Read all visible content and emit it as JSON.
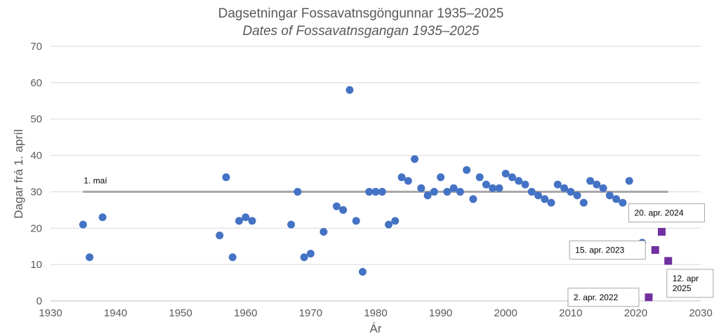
{
  "chart_data": {
    "type": "scatter",
    "title": "Dagsetningar Fossavatnsgöngunnar 1935–2025",
    "subtitle": "Dates of Fossavatnsgangan 1935–2025",
    "xlabel": "Ár",
    "ylabel": "Dagar frá 1. apríl",
    "xlim": [
      1930,
      2030
    ],
    "ylim": [
      0,
      70
    ],
    "x_ticks": [
      1930,
      1940,
      1950,
      1960,
      1970,
      1980,
      1990,
      2000,
      2010,
      2020,
      2030
    ],
    "y_ticks": [
      0,
      10,
      20,
      30,
      40,
      50,
      60,
      70
    ],
    "grid": "horizontal",
    "legend": "none",
    "colors": {
      "series": "#4472C4",
      "recent": "#7030A0",
      "reference_line": "#A6A6A6",
      "grid": "#D9D9D9",
      "text": "#595959"
    },
    "series": [
      {
        "marker": "circle",
        "points": [
          [
            1935,
            21
          ],
          [
            1936,
            12
          ],
          [
            1938,
            23
          ],
          [
            1956,
            18
          ],
          [
            1957,
            34
          ],
          [
            1958,
            12
          ],
          [
            1959,
            22
          ],
          [
            1960,
            23
          ],
          [
            1961,
            22
          ],
          [
            1967,
            21
          ],
          [
            1968,
            30
          ],
          [
            1969,
            12
          ],
          [
            1970,
            13
          ],
          [
            1972,
            19
          ],
          [
            1974,
            26
          ],
          [
            1975,
            25
          ],
          [
            1976,
            58
          ],
          [
            1977,
            22
          ],
          [
            1978,
            8
          ],
          [
            1979,
            30
          ],
          [
            1980,
            30
          ],
          [
            1981,
            30
          ],
          [
            1982,
            21
          ],
          [
            1983,
            22
          ],
          [
            1984,
            34
          ],
          [
            1985,
            33
          ],
          [
            1986,
            39
          ],
          [
            1987,
            31
          ],
          [
            1988,
            29
          ],
          [
            1989,
            30
          ],
          [
            1990,
            34
          ],
          [
            1991,
            30
          ],
          [
            1992,
            31
          ],
          [
            1993,
            30
          ],
          [
            1994,
            36
          ],
          [
            1995,
            28
          ],
          [
            1996,
            34
          ],
          [
            1997,
            32
          ],
          [
            1998,
            31
          ],
          [
            1999,
            31
          ],
          [
            2000,
            35
          ],
          [
            2001,
            34
          ],
          [
            2002,
            33
          ],
          [
            2003,
            32
          ],
          [
            2004,
            30
          ],
          [
            2005,
            29
          ],
          [
            2006,
            28
          ],
          [
            2007,
            27
          ],
          [
            2008,
            32
          ],
          [
            2009,
            31
          ],
          [
            2010,
            30
          ],
          [
            2011,
            29
          ],
          [
            2012,
            27
          ],
          [
            2013,
            33
          ],
          [
            2014,
            32
          ],
          [
            2015,
            31
          ],
          [
            2016,
            29
          ],
          [
            2017,
            28
          ],
          [
            2018,
            27
          ],
          [
            2019,
            33
          ],
          [
            2021,
            16
          ]
        ]
      },
      {
        "marker": "square",
        "points": [
          [
            2022,
            1
          ],
          [
            2023,
            14
          ],
          [
            2024,
            19
          ],
          [
            2025,
            11
          ]
        ]
      }
    ],
    "reference_line": {
      "y": 30,
      "x_from": 1935,
      "x_to": 2025,
      "label": "1. maí"
    },
    "annotations": [
      {
        "lines": [
          "2. apr. 2022"
        ],
        "x": 2022,
        "y": 1,
        "anchor": "left"
      },
      {
        "lines": [
          "15. apr. 2023"
        ],
        "x": 2023,
        "y": 14,
        "anchor": "left"
      },
      {
        "lines": [
          "20. apr. 2024"
        ],
        "x": 2024,
        "y": 19,
        "anchor": "above"
      },
      {
        "lines": [
          "12. apr",
          "2025"
        ],
        "x": 2025,
        "y": 11,
        "anchor": "below"
      }
    ]
  }
}
